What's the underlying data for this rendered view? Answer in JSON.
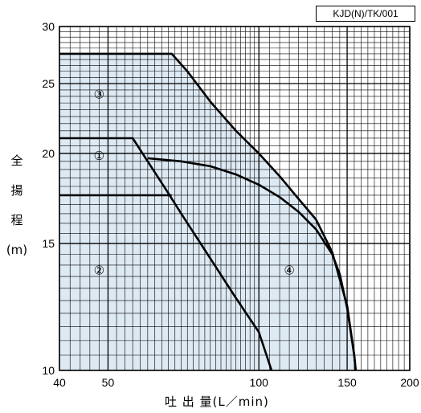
{
  "chart_data": {
    "type": "line",
    "code": "KJD(N)/TK/001",
    "xlabel": "吐 出 量(L／min)",
    "ylabel": [
      "全",
      "揚",
      "程",
      "(m)"
    ],
    "x_scale": "log",
    "y_scale": "log",
    "xlim": [
      40,
      200
    ],
    "ylim": [
      10,
      30
    ],
    "x_ticks": [
      40,
      50,
      100,
      150,
      200
    ],
    "y_ticks": [
      10,
      15,
      20,
      25,
      30
    ],
    "grid": true,
    "fill_color": "#dde9f3",
    "line_color": "#000000",
    "series": [
      {
        "label": "①",
        "label_at": [
          48,
          19.9
        ],
        "points": [
          [
            40,
            21
          ],
          [
            56,
            21
          ],
          [
            60,
            19.5
          ],
          [
            65,
            17.9
          ],
          [
            70,
            16.5
          ],
          [
            80,
            14.3
          ],
          [
            90,
            12.6
          ],
          [
            100,
            11.3
          ],
          [
            106,
            10
          ]
        ]
      },
      {
        "label": "②",
        "label_at": [
          48,
          13.8
        ],
        "points": [
          [
            40,
            17.5
          ],
          [
            67,
            17.5
          ]
        ]
      },
      {
        "label": "③",
        "label_at": [
          48,
          24.2
        ],
        "points": [
          [
            40,
            27.5
          ],
          [
            67,
            27.5
          ],
          [
            72,
            26
          ],
          [
            80,
            23.6
          ],
          [
            90,
            21.5
          ],
          [
            100,
            20
          ],
          [
            110,
            18.6
          ],
          [
            120,
            17.3
          ],
          [
            130,
            16.2
          ],
          [
            140,
            14.6
          ],
          [
            150,
            12.3
          ],
          [
            155,
            10.5
          ],
          [
            156,
            10
          ]
        ]
      },
      {
        "label": "④",
        "label_at": [
          115,
          13.8
        ],
        "points": [
          [
            60,
            19.7
          ],
          [
            70,
            19.5
          ],
          [
            80,
            19.2
          ],
          [
            90,
            18.7
          ],
          [
            100,
            18.1
          ],
          [
            110,
            17.4
          ],
          [
            120,
            16.6
          ],
          [
            130,
            15.7
          ],
          [
            140,
            14.5
          ],
          [
            145,
            13.6
          ],
          [
            150,
            12.2
          ],
          [
            155,
            10.5
          ],
          [
            156,
            10
          ]
        ]
      }
    ]
  }
}
